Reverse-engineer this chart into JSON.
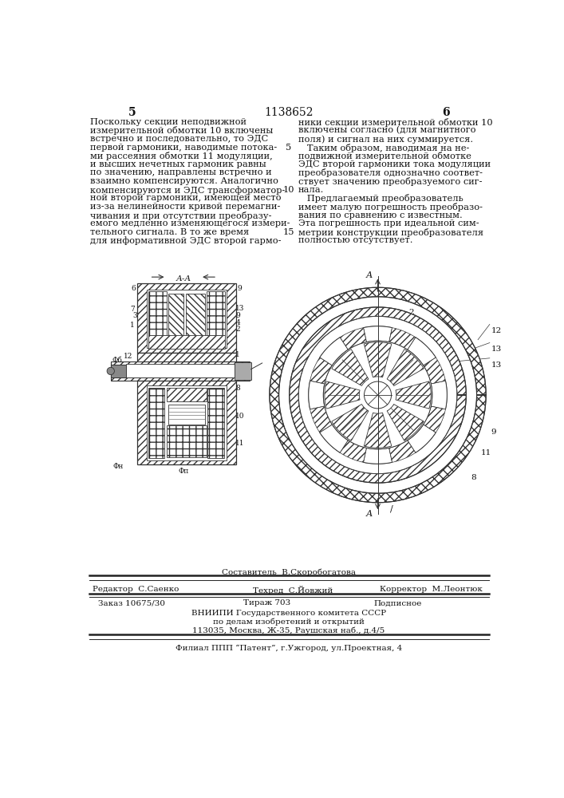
{
  "bg_color": "#ffffff",
  "patent_number": "1138652",
  "page_left": "5",
  "page_right": "6",
  "text_left": [
    "Поскольку секции неподвижной",
    "измерительной обмотки 10 включены",
    "встречно и последовательно, то ЭДС",
    "первой гармоники, наводимые потока-",
    "ми рассеяния обмотки 11 модуляции,",
    "и высших нечетных гармоник равны",
    "по значению, направлены встречно и",
    "взаимно компенсируются. Аналогично",
    "компенсируются и ЭДС трансформатор-",
    "ной второй гармоники, имеющей место",
    "из-за нелинейности кривой перемагни-",
    "чивания и при отсутствии преобразу-",
    "емого медленно изменяющегося измери-",
    "тельного сигнала. В то же время",
    "для информативной ЭДС второй гармо-"
  ],
  "text_right": [
    "ники секции измерительной обмотки 10",
    "включены согласно (для магнитного",
    "поля) и сигнал на них суммируется.",
    "   Таким образом, наводимая на не-",
    "подвижной измерительной обмотке",
    "ЭДС второй гармоники тока модуляции",
    "преобразователя однозначно соответ-",
    "ствует значению преобразуемого сиг-",
    "нала.",
    "   Предлагаемый преобразователь",
    "имеет малую погрешность преобразо-",
    "вания по сравнению с известным.",
    "Эта погрешность при идеальной сим-",
    "метрии конструкции преобразователя",
    "полностью отсутствует."
  ],
  "footer_composer": "Составитель  В.Скоробогатова",
  "footer_editor": "Редактор  С.Саенко",
  "footer_techred": "Техред  С.Йовжий",
  "footer_corrector": "Корректор  М.Леонтюк",
  "footer_order": "Заказ 10675/30",
  "footer_print_run": "Тираж 703",
  "footer_subscription": "Подписное",
  "footer_org": "ВНИИПИ Государственного комитета СССР",
  "footer_dept": "по делам изобретений и открытий",
  "footer_address": "113035, Москва, Ж-35, Раушская наб., д.4/5",
  "footer_branch": "Филиал ППП “Патент”, г.Ужгород, ул.Проектная, 4"
}
